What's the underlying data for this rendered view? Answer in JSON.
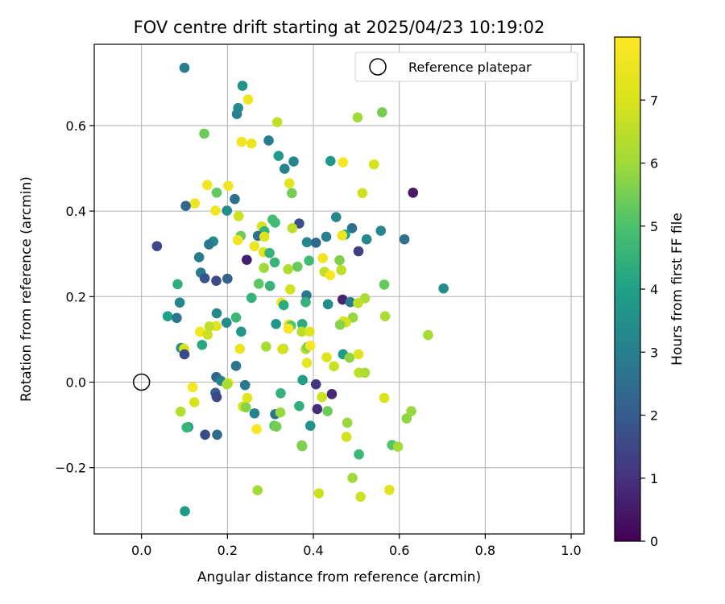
{
  "chart_data": {
    "type": "scatter",
    "title": "FOV centre drift starting at 2025/04/23 10:19:02",
    "xlabel": "Angular distance from reference (arcmin)",
    "ylabel": "Rotation from reference (arcmin)",
    "xlim": [
      -0.11,
      1.03
    ],
    "ylim": [
      -0.355,
      0.79
    ],
    "xticks": [
      0.0,
      0.2,
      0.4,
      0.6,
      0.8,
      1.0
    ],
    "xtick_labels": [
      "0.0",
      "0.2",
      "0.4",
      "0.6",
      "0.8",
      "1.0"
    ],
    "yticks": [
      -0.2,
      0.0,
      0.2,
      0.4,
      0.6
    ],
    "ytick_labels": [
      "−0.2",
      "0.0",
      "0.2",
      "0.4",
      "0.6"
    ],
    "grid": true,
    "legend": {
      "placement": "top-right",
      "entries": [
        {
          "label": "Reference platepar",
          "marker": "open-circle",
          "x": 0.0,
          "y": 0.0
        }
      ]
    },
    "colorbar": {
      "label": "Hours from first FF file",
      "colormap": "viridis",
      "range": [
        0,
        8
      ],
      "ticks": [
        0,
        1,
        2,
        3,
        4,
        5,
        6,
        7
      ],
      "tick_labels": [
        "0",
        "1",
        "2",
        "3",
        "4",
        "5",
        "6",
        "7"
      ]
    },
    "points": [
      [
        0.1,
        0.735,
        2.9
      ],
      [
        0.235,
        0.693,
        3.6
      ],
      [
        0.248,
        0.661,
        7.6
      ],
      [
        0.225,
        0.641,
        3.4
      ],
      [
        0.222,
        0.627,
        3.1
      ],
      [
        0.56,
        0.631,
        5.5
      ],
      [
        0.503,
        0.619,
        6.0
      ],
      [
        0.316,
        0.608,
        6.6
      ],
      [
        0.146,
        0.581,
        5.4
      ],
      [
        0.296,
        0.565,
        2.9
      ],
      [
        0.233,
        0.562,
        7.6
      ],
      [
        0.256,
        0.558,
        7.5
      ],
      [
        0.319,
        0.529,
        3.8
      ],
      [
        0.354,
        0.516,
        3.2
      ],
      [
        0.44,
        0.517,
        3.7
      ],
      [
        0.469,
        0.514,
        7.8
      ],
      [
        0.541,
        0.509,
        7.0
      ],
      [
        0.333,
        0.499,
        3.1
      ],
      [
        0.344,
        0.465,
        7.3
      ],
      [
        0.153,
        0.461,
        7.7
      ],
      [
        0.175,
        0.443,
        5.3
      ],
      [
        0.202,
        0.459,
        7.6
      ],
      [
        0.35,
        0.442,
        5.5
      ],
      [
        0.514,
        0.442,
        6.8
      ],
      [
        0.632,
        0.443,
        0.5
      ],
      [
        0.217,
        0.428,
        2.6
      ],
      [
        0.124,
        0.418,
        7.6
      ],
      [
        0.103,
        0.412,
        2.3
      ],
      [
        0.172,
        0.401,
        7.7
      ],
      [
        0.199,
        0.401,
        3.4
      ],
      [
        0.226,
        0.388,
        6.8
      ],
      [
        0.453,
        0.386,
        3.2
      ],
      [
        0.305,
        0.38,
        4.9
      ],
      [
        0.311,
        0.373,
        4.8
      ],
      [
        0.367,
        0.371,
        1.7
      ],
      [
        0.28,
        0.364,
        7.0
      ],
      [
        0.351,
        0.36,
        6.5
      ],
      [
        0.49,
        0.36,
        2.6
      ],
      [
        0.286,
        0.353,
        4.5
      ],
      [
        0.557,
        0.354,
        3.2
      ],
      [
        0.474,
        0.345,
        4.0
      ],
      [
        0.467,
        0.343,
        7.5
      ],
      [
        0.231,
        0.342,
        5.4
      ],
      [
        0.271,
        0.342,
        2.6
      ],
      [
        0.43,
        0.34,
        3.0
      ],
      [
        0.286,
        0.34,
        7.2
      ],
      [
        0.524,
        0.334,
        3.2
      ],
      [
        0.612,
        0.334,
        2.6
      ],
      [
        0.224,
        0.332,
        7.6
      ],
      [
        0.167,
        0.329,
        3.3
      ],
      [
        0.385,
        0.327,
        3.2
      ],
      [
        0.406,
        0.326,
        2.3
      ],
      [
        0.157,
        0.322,
        2.8
      ],
      [
        0.263,
        0.318,
        7.5
      ],
      [
        0.036,
        0.318,
        1.5
      ],
      [
        0.505,
        0.306,
        1.3
      ],
      [
        0.284,
        0.304,
        7.2
      ],
      [
        0.298,
        0.302,
        4.5
      ],
      [
        0.422,
        0.29,
        7.7
      ],
      [
        0.134,
        0.292,
        3.0
      ],
      [
        0.245,
        0.286,
        0.6
      ],
      [
        0.461,
        0.285,
        5.6
      ],
      [
        0.31,
        0.28,
        4.6
      ],
      [
        0.363,
        0.27,
        5.3
      ],
      [
        0.39,
        0.284,
        4.8
      ],
      [
        0.285,
        0.267,
        6.0
      ],
      [
        0.341,
        0.264,
        6.3
      ],
      [
        0.465,
        0.262,
        6.5
      ],
      [
        0.426,
        0.258,
        6.6
      ],
      [
        0.439,
        0.25,
        7.8
      ],
      [
        0.138,
        0.256,
        2.9
      ],
      [
        0.147,
        0.243,
        1.8
      ],
      [
        0.2,
        0.242,
        2.2
      ],
      [
        0.174,
        0.237,
        1.6
      ],
      [
        0.565,
        0.228,
        5.3
      ],
      [
        0.084,
        0.229,
        4.4
      ],
      [
        0.273,
        0.23,
        5.2
      ],
      [
        0.299,
        0.225,
        4.6
      ],
      [
        0.346,
        0.217,
        6.9
      ],
      [
        0.703,
        0.219,
        3.4
      ],
      [
        0.384,
        0.203,
        2.8
      ],
      [
        0.256,
        0.197,
        4.5
      ],
      [
        0.468,
        0.193,
        0.7
      ],
      [
        0.52,
        0.196,
        6.2
      ],
      [
        0.326,
        0.186,
        7.6
      ],
      [
        0.089,
        0.186,
        3.2
      ],
      [
        0.382,
        0.187,
        4.5
      ],
      [
        0.486,
        0.187,
        2.9
      ],
      [
        0.504,
        0.185,
        6.5
      ],
      [
        0.331,
        0.18,
        4.3
      ],
      [
        0.434,
        0.182,
        3.4
      ],
      [
        0.061,
        0.154,
        4.0
      ],
      [
        0.082,
        0.15,
        2.7
      ],
      [
        0.175,
        0.161,
        3.3
      ],
      [
        0.22,
        0.151,
        4.7
      ],
      [
        0.567,
        0.154,
        6.2
      ],
      [
        0.492,
        0.151,
        5.9
      ],
      [
        0.198,
        0.139,
        3.4
      ],
      [
        0.174,
        0.131,
        7.3
      ],
      [
        0.158,
        0.13,
        6.5
      ],
      [
        0.313,
        0.136,
        3.7
      ],
      [
        0.374,
        0.136,
        4.3
      ],
      [
        0.343,
        0.135,
        7.3
      ],
      [
        0.348,
        0.132,
        5.1
      ],
      [
        0.47,
        0.142,
        7.0
      ],
      [
        0.476,
        0.14,
        6.9
      ],
      [
        0.462,
        0.134,
        5.7
      ],
      [
        0.342,
        0.125,
        7.8
      ],
      [
        0.373,
        0.118,
        6.4
      ],
      [
        0.136,
        0.118,
        7.7
      ],
      [
        0.154,
        0.111,
        6.8
      ],
      [
        0.232,
        0.118,
        3.7
      ],
      [
        0.391,
        0.118,
        7.1
      ],
      [
        0.667,
        0.11,
        6.1
      ],
      [
        0.141,
        0.087,
        4.2
      ],
      [
        0.29,
        0.083,
        6.1
      ],
      [
        0.33,
        0.078,
        6.2
      ],
      [
        0.328,
        0.077,
        6.9
      ],
      [
        0.382,
        0.077,
        6.5
      ],
      [
        0.386,
        0.082,
        5.6
      ],
      [
        0.393,
        0.085,
        7.9
      ],
      [
        0.229,
        0.078,
        7.5
      ],
      [
        0.092,
        0.08,
        3.5
      ],
      [
        0.099,
        0.078,
        7.0
      ],
      [
        0.1,
        0.065,
        1.6
      ],
      [
        0.431,
        0.058,
        7.1
      ],
      [
        0.469,
        0.065,
        3.8
      ],
      [
        0.484,
        0.057,
        5.8
      ],
      [
        0.505,
        0.065,
        7.1
      ],
      [
        0.448,
        0.037,
        6.7
      ],
      [
        0.22,
        0.038,
        2.7
      ],
      [
        0.506,
        0.022,
        6.5
      ],
      [
        0.52,
        0.022,
        6.2
      ],
      [
        0.385,
        0.045,
        7.4
      ],
      [
        0.375,
        0.005,
        3.9
      ],
      [
        0.174,
        0.012,
        2.3
      ],
      [
        0.185,
        0.003,
        3.1
      ],
      [
        0.202,
        -0.002,
        7.2
      ],
      [
        0.199,
        -0.005,
        6.2
      ],
      [
        0.241,
        -0.007,
        2.8
      ],
      [
        0.406,
        -0.005,
        1.1
      ],
      [
        0.119,
        -0.012,
        7.8
      ],
      [
        0.172,
        -0.025,
        2.1
      ],
      [
        0.175,
        -0.035,
        1.5
      ],
      [
        0.324,
        -0.026,
        4.5
      ],
      [
        0.246,
        -0.037,
        7.2
      ],
      [
        0.42,
        -0.035,
        6.8
      ],
      [
        0.443,
        -0.028,
        0.8
      ],
      [
        0.565,
        -0.037,
        7.0
      ],
      [
        0.123,
        -0.047,
        7.0
      ],
      [
        0.236,
        -0.057,
        7.0
      ],
      [
        0.243,
        -0.059,
        5.7
      ],
      [
        0.409,
        -0.063,
        0.9
      ],
      [
        0.367,
        -0.056,
        4.4
      ],
      [
        0.433,
        -0.068,
        5.4
      ],
      [
        0.263,
        -0.073,
        3.1
      ],
      [
        0.311,
        -0.075,
        2.7
      ],
      [
        0.323,
        -0.071,
        5.9
      ],
      [
        0.628,
        -0.068,
        5.9
      ],
      [
        0.617,
        -0.085,
        5.8
      ],
      [
        0.091,
        -0.069,
        6.3
      ],
      [
        0.479,
        -0.095,
        5.9
      ],
      [
        0.393,
        -0.102,
        3.6
      ],
      [
        0.309,
        -0.102,
        5.1
      ],
      [
        0.314,
        -0.104,
        5.5
      ],
      [
        0.109,
        -0.105,
        3.9
      ],
      [
        0.105,
        -0.106,
        4.6
      ],
      [
        0.268,
        -0.11,
        7.8
      ],
      [
        0.148,
        -0.123,
        1.6
      ],
      [
        0.176,
        -0.123,
        2.4
      ],
      [
        0.477,
        -0.128,
        6.9
      ],
      [
        0.583,
        -0.147,
        5.1
      ],
      [
        0.373,
        -0.148,
        5.5
      ],
      [
        0.374,
        -0.15,
        5.6
      ],
      [
        0.597,
        -0.151,
        6.1
      ],
      [
        0.506,
        -0.169,
        4.7
      ],
      [
        0.491,
        -0.224,
        6.0
      ],
      [
        0.27,
        -0.253,
        6.1
      ],
      [
        0.577,
        -0.252,
        7.2
      ],
      [
        0.413,
        -0.26,
        6.8
      ],
      [
        0.51,
        -0.268,
        6.8
      ],
      [
        0.101,
        -0.302,
        3.8
      ]
    ]
  }
}
